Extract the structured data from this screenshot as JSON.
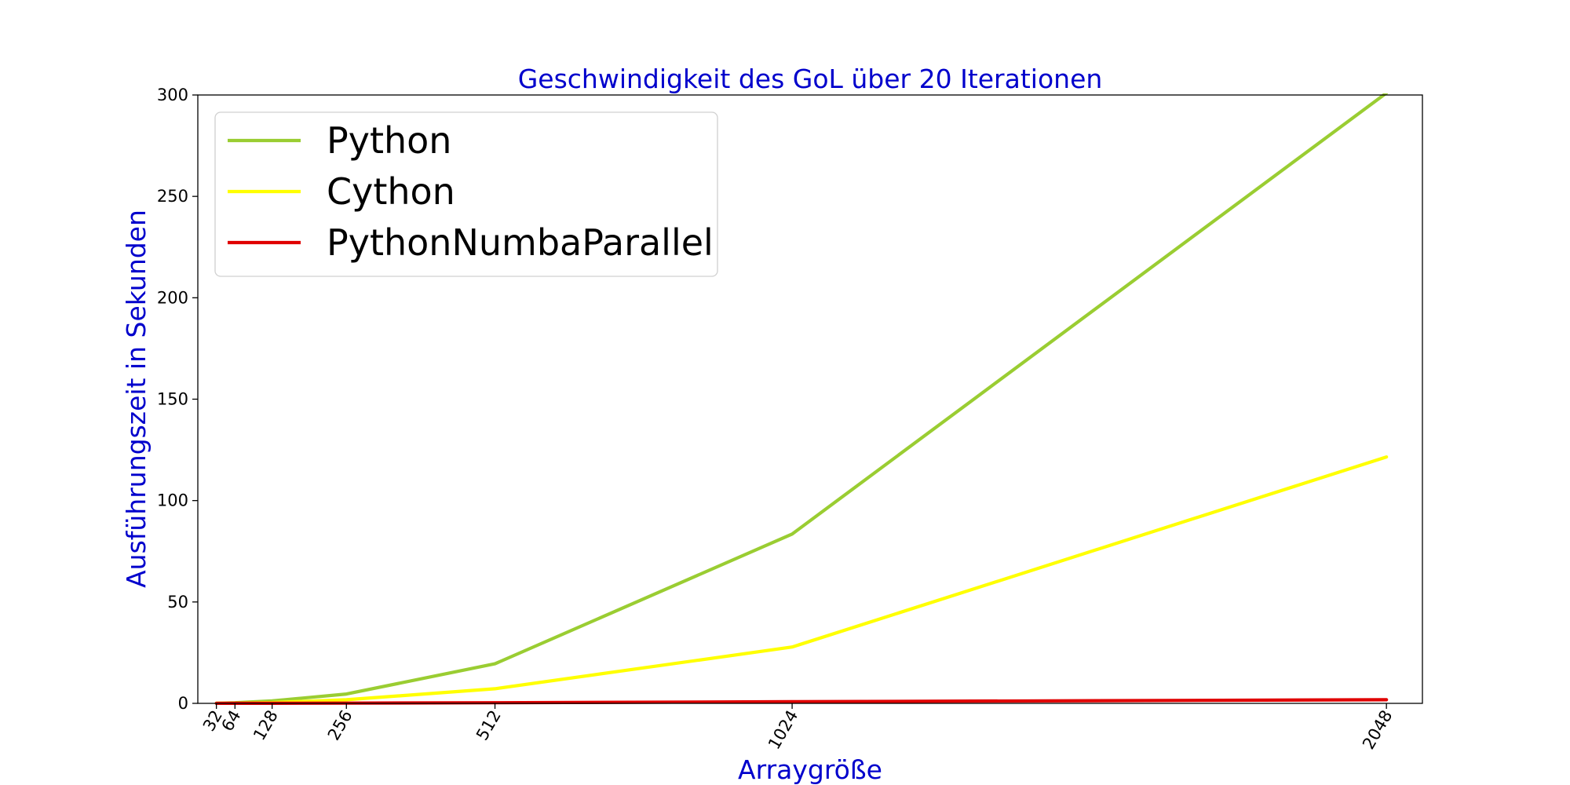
{
  "chart_data": {
    "type": "line",
    "title": "Geschwindigkeit des GoL über 20 Iterationen",
    "xlabel": "Arraygröße",
    "ylabel": "Ausführungszeit in Sekunden",
    "x": [
      32,
      64,
      128,
      256,
      512,
      1024,
      2048
    ],
    "x_tick_labels": [
      "32",
      "64",
      "128",
      "256",
      "512",
      "1024",
      "2048"
    ],
    "xlim": [
      0,
      2110
    ],
    "ylim": [
      0,
      300
    ],
    "y_ticks": [
      0,
      50,
      100,
      150,
      200,
      250,
      300
    ],
    "y_tick_labels": [
      "0",
      "50",
      "100",
      "150",
      "200",
      "250",
      "300"
    ],
    "grid": false,
    "legend_position": "top-left",
    "title_color": "#0000cc",
    "label_color": "#0000cc",
    "series": [
      {
        "name": "Python",
        "color": "#9acd32",
        "values": [
          0.08,
          0.3,
          1.2,
          4.6,
          19.5,
          83.5,
          301
        ]
      },
      {
        "name": "Cython",
        "color": "#ffff00",
        "values": [
          0.03,
          0.1,
          0.4,
          1.8,
          7.2,
          27.8,
          121.5
        ]
      },
      {
        "name": "PythonNumbaParallel",
        "color": "#e00000",
        "values": [
          0.01,
          0.02,
          0.05,
          0.1,
          0.3,
          0.8,
          1.8
        ]
      }
    ]
  }
}
